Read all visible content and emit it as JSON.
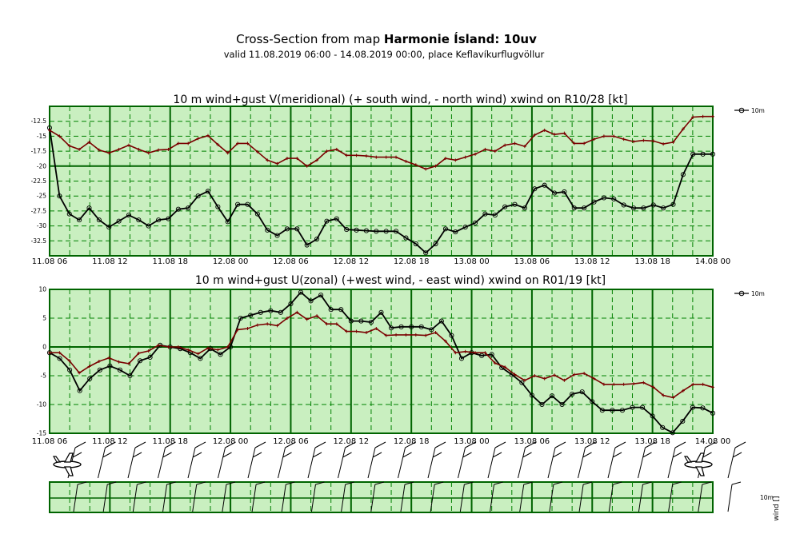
{
  "header": {
    "title_prefix": "Cross-Section from map ",
    "title_bold": "Harmonie Ísland: 10uv",
    "subtitle": "valid 11.08.2019 06:00 - 14.08.2019 00:00, place Keflavíkurflugvöllur"
  },
  "x_tick_labels": [
    "11.08 06",
    "11.08 12",
    "11.08 18",
    "12.08 00",
    "12.08 06",
    "12.08 12",
    "12.08 18",
    "13.08 00",
    "13.08 06",
    "13.08 12",
    "13.08 18",
    "14.08 00"
  ],
  "wind_label": "10m",
  "wind_axis_label": "wind []",
  "colors": {
    "gust": "#7a0000",
    "wind": "#000000",
    "grid": "#008000",
    "frame": "#006400"
  },
  "chart_data": [
    {
      "type": "line",
      "title": "10 m wind+gust V(meridional) (+ south wind, - north wind) xwind on R10/28 [kt]",
      "ylim": [
        -35,
        -10
      ],
      "y_ticks": [
        -12.5,
        -15,
        -17.5,
        -20,
        -22.5,
        -25,
        -27.5,
        -30,
        -32.5
      ],
      "legend": "10m",
      "series": [
        {
          "name": "10m",
          "role": "wind",
          "values": [
            -13.6,
            -25,
            -28,
            -29,
            -27,
            -29,
            -30.2,
            -29.2,
            -28.2,
            -29,
            -30,
            -29,
            -28.8,
            -27.2,
            -27,
            -25,
            -24.2,
            -26.8,
            -29.3,
            -26.4,
            -26.4,
            -28,
            -30.7,
            -31.6,
            -30.5,
            -30.5,
            -33.2,
            -32.2,
            -29.2,
            -28.8,
            -30.6,
            -30.7,
            -30.8,
            -30.9,
            -30.9,
            -30.9,
            -32,
            -33,
            -34.5,
            -33,
            -30.5,
            -31,
            -30.2,
            -29.5,
            -28,
            -28.2,
            -26.8,
            -26.4,
            -27,
            -23.8,
            -23.2,
            -24.5,
            -24.3,
            -27,
            -27,
            -26,
            -25.3,
            -25.5,
            -26.5,
            -27,
            -27,
            -26.5,
            -27,
            -26.4,
            -21.4,
            -18,
            -18,
            -18
          ]
        },
        {
          "name": "",
          "role": "gust",
          "values": [
            -14,
            -15,
            -16.6,
            -17.2,
            -16,
            -17.3,
            -17.8,
            -17.2,
            -16.5,
            -17.2,
            -17.8,
            -17.3,
            -17.2,
            -16.2,
            -16.2,
            -15.4,
            -14.9,
            -16.4,
            -17.8,
            -16.2,
            -16.2,
            -17.6,
            -19,
            -19.6,
            -18.7,
            -18.7,
            -20,
            -19,
            -17.5,
            -17.2,
            -18.2,
            -18.2,
            -18.3,
            -18.5,
            -18.5,
            -18.5,
            -19.2,
            -19.8,
            -20.5,
            -20,
            -18.7,
            -19,
            -18.5,
            -18,
            -17.2,
            -17.5,
            -16.5,
            -16.2,
            -16.7,
            -14.8,
            -14,
            -14.7,
            -14.5,
            -16.2,
            -16.2,
            -15.5,
            -15,
            -15,
            -15.5,
            -15.9,
            -15.7,
            -15.8,
            -16.3,
            -16,
            -13.8,
            -11.8,
            -11.7,
            -11.7
          ]
        }
      ]
    },
    {
      "type": "line",
      "title": "10 m wind+gust U(zonal) (+west wind, - east wind) xwind on R01/19 [kt]",
      "ylim": [
        -15,
        10
      ],
      "y_ticks": [
        10,
        5,
        0,
        -5,
        -10,
        -15
      ],
      "legend": "10m",
      "series": [
        {
          "name": "10m",
          "role": "wind",
          "values": [
            -1,
            -2,
            -4,
            -7.6,
            -5.5,
            -4,
            -3.3,
            -4,
            -5,
            -2.4,
            -1.8,
            0.3,
            0,
            -0.3,
            -1,
            -2,
            -0.3,
            -1.3,
            0,
            5,
            5.5,
            6,
            6.3,
            6,
            7.5,
            9.5,
            8,
            9,
            6.5,
            6.5,
            4.5,
            4.5,
            4.3,
            6,
            3.3,
            3.5,
            3.5,
            3.5,
            3,
            4.5,
            2,
            -2,
            -1,
            -1.5,
            -1.3,
            -3.6,
            -4.8,
            -6.2,
            -8.4,
            -10,
            -8.5,
            -10,
            -8.2,
            -7.8,
            -9.5,
            -11,
            -11,
            -11,
            -10.5,
            -10.5,
            -12,
            -14,
            -14.9,
            -12.9,
            -10.5,
            -10.6,
            -11.5
          ]
        },
        {
          "name": "",
          "role": "gust",
          "values": [
            -1,
            -1,
            -2.4,
            -4.5,
            -3.4,
            -2.5,
            -1.9,
            -2.6,
            -2.9,
            -1.1,
            -0.7,
            0.3,
            0,
            0,
            -0.5,
            -1.2,
            -0.2,
            -0.5,
            0,
            3,
            3.2,
            3.8,
            4,
            3.7,
            5,
            6,
            4.8,
            5.4,
            4,
            4,
            2.7,
            2.7,
            2.5,
            3.2,
            2,
            2.1,
            2.1,
            2.1,
            2,
            2.5,
            1,
            -1,
            -0.8,
            -1,
            -1,
            -2.8,
            -3.5,
            -4.8,
            -5.8,
            -5,
            -5.5,
            -4.9,
            -5.8,
            -4.8,
            -4.6,
            -5.5,
            -6.5,
            -6.5,
            -6.5,
            -6.4,
            -6.2,
            -7,
            -8.4,
            -8.8,
            -7.6,
            -6.5,
            -6.5,
            -7
          ]
        }
      ]
    }
  ]
}
